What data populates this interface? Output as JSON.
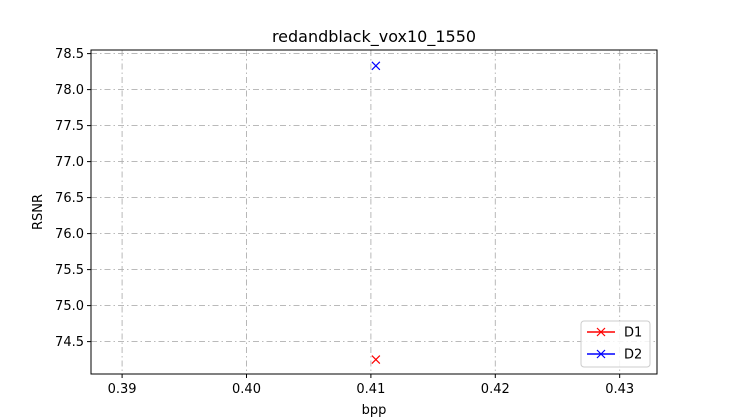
{
  "chart_data": {
    "type": "line",
    "title": "redandblack_vox10_1550",
    "xlabel": "bpp",
    "ylabel": "RSNR",
    "xlim": [
      0.3875,
      0.433
    ],
    "ylim": [
      74.05,
      78.55
    ],
    "xticks": [
      "0.39",
      "0.40",
      "0.41",
      "0.42",
      "0.43"
    ],
    "yticks": [
      "74.5",
      "75.0",
      "75.5",
      "76.0",
      "76.5",
      "77.0",
      "77.5",
      "78.0",
      "78.5"
    ],
    "grid": true,
    "legend_position": "lower-right",
    "series": [
      {
        "name": "D1",
        "color": "#ff0000",
        "marker": "x",
        "points": [
          {
            "x": 0.4104,
            "y": 74.25
          }
        ]
      },
      {
        "name": "D2",
        "color": "#0000ff",
        "marker": "x",
        "points": [
          {
            "x": 0.4104,
            "y": 78.33
          }
        ]
      }
    ]
  }
}
